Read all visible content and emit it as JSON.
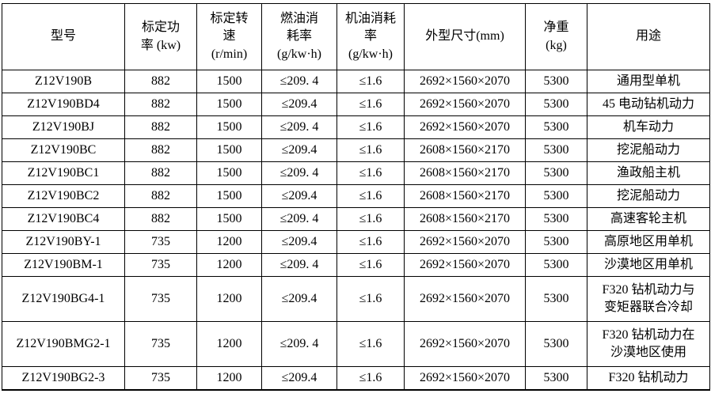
{
  "colors": {
    "border": "#000000",
    "text": "#000000",
    "background": "#ffffff"
  },
  "table": {
    "headers": [
      "型号",
      "标定功\n率 (kw)",
      "标定转\n速\n(r/min)",
      "燃油消\n耗率\n(g/kw·h)",
      "机油消耗\n率\n(g/kw·h)",
      "外型尺寸(mm)",
      "净重\n(kg)",
      "用途"
    ],
    "rows": [
      {
        "model": "Z12V190B",
        "power": "882",
        "speed": "1500",
        "fuel": "≤209. 4",
        "oil": "≤1.6",
        "dimensions": "2692×1560×2070",
        "weight": "5300",
        "use": "通用型单机"
      },
      {
        "model": "Z12V190BD4",
        "power": "882",
        "speed": "1500",
        "fuel": "≤209.4",
        "oil": "≤1.6",
        "dimensions": "2692×1560×2070",
        "weight": "5300",
        "use": "45 电动钻机动力"
      },
      {
        "model": "Z12V190BJ",
        "power": "882",
        "speed": "1500",
        "fuel": "≤209. 4",
        "oil": "≤1.6",
        "dimensions": "2692×1560×2070",
        "weight": "5300",
        "use": "机车动力"
      },
      {
        "model": "Z12V190BC",
        "power": "882",
        "speed": "1500",
        "fuel": "≤209.4",
        "oil": "≤1.6",
        "dimensions": "2608×1560×2170",
        "weight": "5300",
        "use": "挖泥船动力"
      },
      {
        "model": "Z12V190BC1",
        "power": "882",
        "speed": "1500",
        "fuel": "≤209. 4",
        "oil": "≤1.6",
        "dimensions": "2608×1560×2170",
        "weight": "5300",
        "use": "渔政船主机"
      },
      {
        "model": "Z12V190BC2",
        "power": "882",
        "speed": "1500",
        "fuel": "≤209.4",
        "oil": "≤1.6",
        "dimensions": "2608×1560×2170",
        "weight": "5300",
        "use": "挖泥船动力"
      },
      {
        "model": "Z12V190BC4",
        "power": "882",
        "speed": "1500",
        "fuel": "≤209. 4",
        "oil": "≤1.6",
        "dimensions": "2608×1560×2170",
        "weight": "5300",
        "use": "高速客轮主机"
      },
      {
        "model": "Z12V190BY-1",
        "power": "735",
        "speed": "1200",
        "fuel": "≤209.4",
        "oil": "≤1.6",
        "dimensions": "2692×1560×2070",
        "weight": "5300",
        "use": "高原地区用单机"
      },
      {
        "model": "Z12V190BM-1",
        "power": "735",
        "speed": "1200",
        "fuel": "≤209. 4",
        "oil": "≤1.6",
        "dimensions": "2692×1560×2070",
        "weight": "5300",
        "use": "沙漠地区用单机"
      },
      {
        "model": "Z12V190BG4-1",
        "power": "735",
        "speed": "1200",
        "fuel": "≤209.4",
        "oil": "≤1.6",
        "dimensions": "2692×1560×2070",
        "weight": "5300",
        "use": "F320 钻机动力与\n变矩器联合冷却"
      },
      {
        "model": "Z12V190BMG2-1",
        "power": "735",
        "speed": "1200",
        "fuel": "≤209. 4",
        "oil": "≤1.6",
        "dimensions": "2692×1560×2070",
        "weight": "5300",
        "use": "F320 钻机动力在\n沙漠地区使用"
      },
      {
        "model": "Z12V190BG2-3",
        "power": "735",
        "speed": "1200",
        "fuel": "≤209.4",
        "oil": "≤1.6",
        "dimensions": "2692×1560×2070",
        "weight": "5300",
        "use": "F320 钻机动力"
      }
    ]
  }
}
